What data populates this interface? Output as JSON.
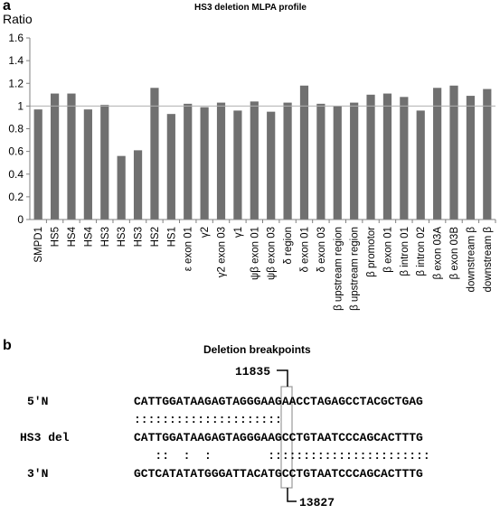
{
  "panel_a_label": "a",
  "panel_b_label": "b",
  "chart_data": {
    "type": "bar",
    "title": "HS3 deletion MLPA profile",
    "ylabel": "Ratio",
    "xlabel": "",
    "ylim": [
      0,
      1.6
    ],
    "yticks": [
      "0",
      "0.2",
      "0.4",
      "0.6",
      "0.8",
      "1",
      "1.2",
      "1.4",
      "1.6"
    ],
    "reference_line": 1,
    "bar_color": "#707070",
    "categories": [
      "SMPD1",
      "HS5",
      "HS4",
      "HS4",
      "HS3",
      "HS3",
      "HS3",
      "HS2",
      "HS1",
      "ε exon 01",
      "γ2",
      "γ2 exon 03",
      "γ1",
      "ψβ exon 01",
      "ψβ exon 03",
      "δ region",
      "δ exon 01",
      "δ exon 03",
      "β upstream region",
      "β upstream region",
      "β promotor",
      "β exon 01",
      "β intron 01",
      "β intron 02",
      "β exon 03A",
      "β exon 03B",
      "downstream β",
      "downstream β"
    ],
    "values": [
      0.97,
      1.11,
      1.11,
      0.97,
      1.01,
      0.56,
      0.61,
      1.16,
      0.93,
      1.02,
      0.99,
      1.03,
      0.96,
      1.04,
      0.95,
      1.03,
      1.18,
      1.02,
      1.0,
      1.03,
      1.1,
      1.11,
      1.08,
      0.96,
      1.16,
      1.18,
      1.09,
      1.15
    ]
  },
  "breakpoints": {
    "title": "Deletion breakpoints",
    "top_label": "11835",
    "bottom_label": "13827",
    "rows": [
      {
        "name": "5'N",
        "seq": "CATTGGATAAGAGTAGGGAAGAACCTAGAGCCTACGCTGAG"
      },
      {
        "name": "",
        "seq": ":::::::::::::::::::::"
      },
      {
        "name": "HS3 del",
        "seq": "CATTGGATAAGAGTAGGGAAGCCTGTAATCCCAGCACTTTG"
      },
      {
        "name": "",
        "seq": "   ::  :  :        :::::::::::::::::::::::"
      },
      {
        "name": "3'N",
        "seq": "GCTCATATATGGGATTACATGCCTGTAATCCCAGCACTTTG"
      }
    ]
  }
}
